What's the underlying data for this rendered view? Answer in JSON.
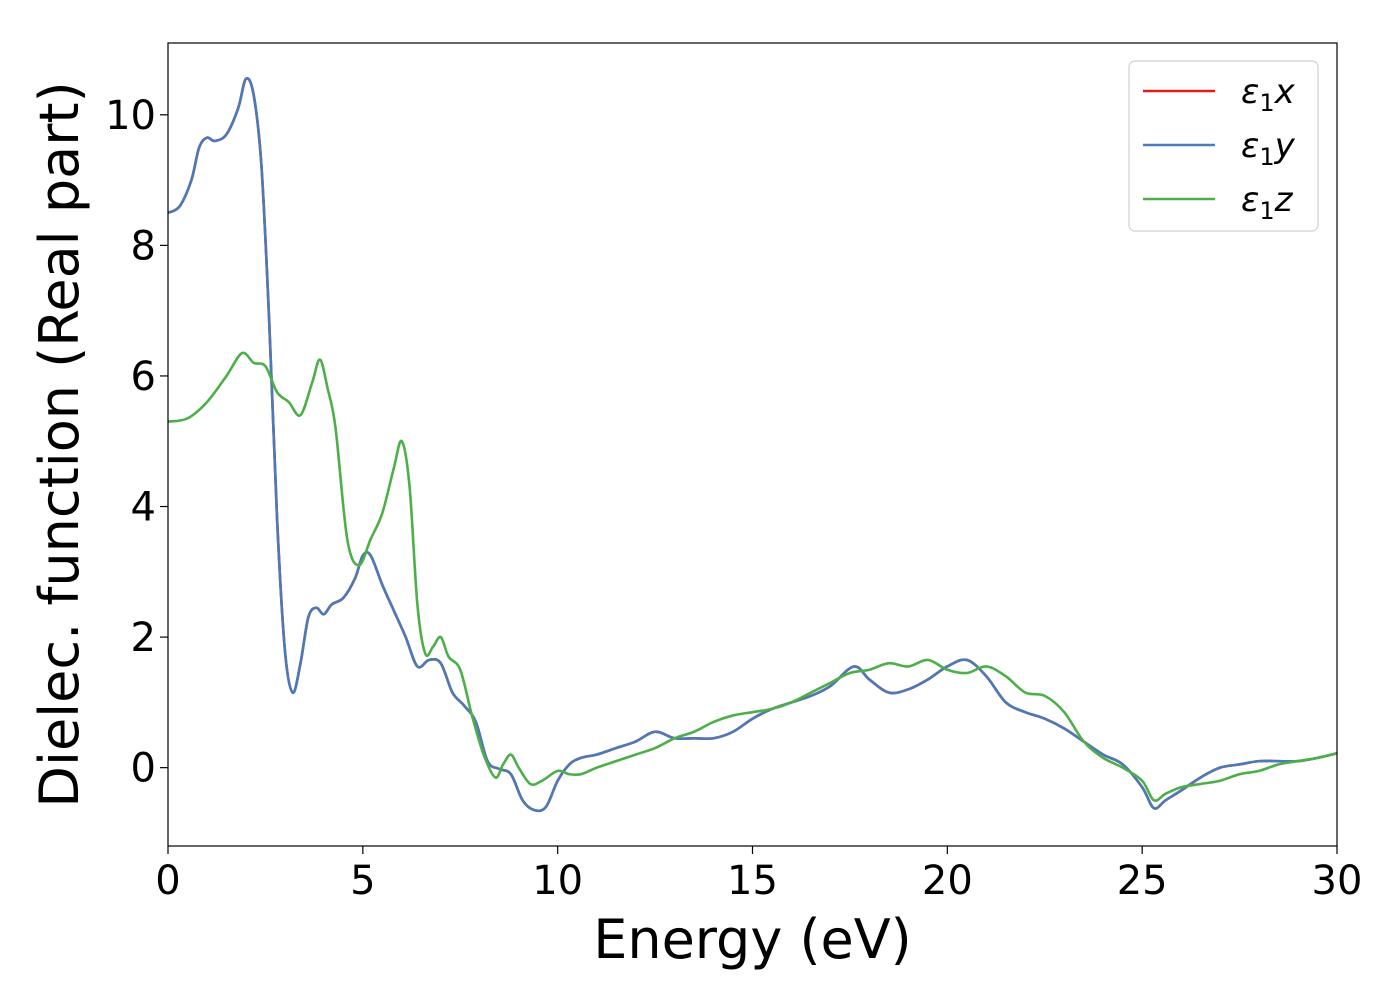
{
  "chart_data": {
    "type": "line",
    "title": "",
    "xlabel": "Energy (eV)",
    "ylabel": "Dielec. function (Real part)",
    "xlim": [
      0,
      30
    ],
    "ylim": [
      -1.2,
      11.1
    ],
    "x_ticks": [
      0,
      5,
      10,
      15,
      20,
      25,
      30
    ],
    "y_ticks": [
      0,
      2,
      4,
      6,
      8,
      10
    ],
    "grid": false,
    "legend_position": "top-right",
    "series": [
      {
        "name": "ε1x",
        "legend_base": "ε",
        "legend_sub": "1",
        "legend_suffix": "x",
        "color": "#e41a1c",
        "x": [
          0,
          0.3,
          0.6,
          0.8,
          1.0,
          1.2,
          1.5,
          1.8,
          2.0,
          2.2,
          2.4,
          2.6,
          2.8,
          3.0,
          3.2,
          3.4,
          3.6,
          3.8,
          4.0,
          4.2,
          4.5,
          4.8,
          5.0,
          5.2,
          5.5,
          5.8,
          6.1,
          6.4,
          6.7,
          7.0,
          7.3,
          7.6,
          7.9,
          8.2,
          8.5,
          8.8,
          9.1,
          9.4,
          9.7,
          10.0,
          10.3,
          10.6,
          11.0,
          11.5,
          12.0,
          12.5,
          13.0,
          13.5,
          14.0,
          14.5,
          15.0,
          15.5,
          16.0,
          16.5,
          17.0,
          17.6,
          18.0,
          18.5,
          19.0,
          19.5,
          20.0,
          20.5,
          21.0,
          21.5,
          22.0,
          22.5,
          23.0,
          23.5,
          24.0,
          24.5,
          25.0,
          25.3,
          25.6,
          26.0,
          26.5,
          27.0,
          27.5,
          28.0,
          28.5,
          29.0,
          29.5,
          30.0
        ],
        "y": [
          8.5,
          8.6,
          9.0,
          9.5,
          9.65,
          9.6,
          9.7,
          10.1,
          10.55,
          10.3,
          9.2,
          6.8,
          3.8,
          1.8,
          1.15,
          1.6,
          2.3,
          2.45,
          2.35,
          2.5,
          2.6,
          2.9,
          3.25,
          3.25,
          2.8,
          2.4,
          2.0,
          1.55,
          1.65,
          1.6,
          1.15,
          0.95,
          0.7,
          0.1,
          -0.02,
          -0.1,
          -0.5,
          -0.65,
          -0.6,
          -0.2,
          0.05,
          0.15,
          0.2,
          0.3,
          0.4,
          0.55,
          0.45,
          0.45,
          0.45,
          0.55,
          0.75,
          0.9,
          1.0,
          1.1,
          1.25,
          1.55,
          1.35,
          1.15,
          1.2,
          1.35,
          1.55,
          1.65,
          1.4,
          1.0,
          0.85,
          0.75,
          0.6,
          0.4,
          0.2,
          0.05,
          -0.3,
          -0.62,
          -0.5,
          -0.35,
          -0.15,
          0.0,
          0.05,
          0.1,
          0.1,
          0.1,
          0.15,
          0.22
        ]
      },
      {
        "name": "ε1y",
        "legend_base": "ε",
        "legend_sub": "1",
        "legend_suffix": "y",
        "color": "#4a7ab8",
        "x": [
          0,
          0.3,
          0.6,
          0.8,
          1.0,
          1.2,
          1.5,
          1.8,
          2.0,
          2.2,
          2.4,
          2.6,
          2.8,
          3.0,
          3.2,
          3.4,
          3.6,
          3.8,
          4.0,
          4.2,
          4.5,
          4.8,
          5.0,
          5.2,
          5.5,
          5.8,
          6.1,
          6.4,
          6.7,
          7.0,
          7.3,
          7.6,
          7.9,
          8.2,
          8.5,
          8.8,
          9.1,
          9.4,
          9.7,
          10.0,
          10.3,
          10.6,
          11.0,
          11.5,
          12.0,
          12.5,
          13.0,
          13.5,
          14.0,
          14.5,
          15.0,
          15.5,
          16.0,
          16.5,
          17.0,
          17.6,
          18.0,
          18.5,
          19.0,
          19.5,
          20.0,
          20.5,
          21.0,
          21.5,
          22.0,
          22.5,
          23.0,
          23.5,
          24.0,
          24.5,
          25.0,
          25.3,
          25.6,
          26.0,
          26.5,
          27.0,
          27.5,
          28.0,
          28.5,
          29.0,
          29.5,
          30.0
        ],
        "y": [
          8.5,
          8.6,
          9.0,
          9.5,
          9.65,
          9.6,
          9.7,
          10.1,
          10.55,
          10.3,
          9.2,
          6.8,
          3.8,
          1.8,
          1.15,
          1.6,
          2.3,
          2.45,
          2.35,
          2.5,
          2.6,
          2.9,
          3.25,
          3.25,
          2.8,
          2.4,
          2.0,
          1.55,
          1.65,
          1.6,
          1.15,
          0.95,
          0.7,
          0.1,
          -0.02,
          -0.1,
          -0.5,
          -0.65,
          -0.6,
          -0.2,
          0.05,
          0.15,
          0.2,
          0.3,
          0.4,
          0.55,
          0.45,
          0.45,
          0.45,
          0.55,
          0.75,
          0.9,
          1.0,
          1.1,
          1.25,
          1.55,
          1.35,
          1.15,
          1.2,
          1.35,
          1.55,
          1.65,
          1.4,
          1.0,
          0.85,
          0.75,
          0.6,
          0.4,
          0.2,
          0.05,
          -0.3,
          -0.62,
          -0.5,
          -0.35,
          -0.15,
          0.0,
          0.05,
          0.1,
          0.1,
          0.1,
          0.15,
          0.22
        ]
      },
      {
        "name": "ε1z",
        "legend_base": "ε",
        "legend_sub": "1",
        "legend_suffix": "z",
        "color": "#4daf4a",
        "x": [
          0,
          0.5,
          1.0,
          1.5,
          1.9,
          2.2,
          2.5,
          2.8,
          3.1,
          3.4,
          3.7,
          3.9,
          4.1,
          4.3,
          4.6,
          4.9,
          5.2,
          5.5,
          5.8,
          6.0,
          6.2,
          6.4,
          6.6,
          6.8,
          7.0,
          7.2,
          7.5,
          7.8,
          8.1,
          8.4,
          8.6,
          8.8,
          9.0,
          9.3,
          9.6,
          10.0,
          10.3,
          10.6,
          11.0,
          11.5,
          12.0,
          12.5,
          13.0,
          13.5,
          14.0,
          14.5,
          15.0,
          15.5,
          16.0,
          16.5,
          17.0,
          17.5,
          18.0,
          18.5,
          19.0,
          19.5,
          20.0,
          20.5,
          21.0,
          21.5,
          22.0,
          22.5,
          23.0,
          23.5,
          24.0,
          24.5,
          25.0,
          25.3,
          25.6,
          26.0,
          26.5,
          27.0,
          27.5,
          28.0,
          28.5,
          29.0,
          29.5,
          30.0
        ],
        "y": [
          5.3,
          5.35,
          5.6,
          6.0,
          6.35,
          6.2,
          6.15,
          5.75,
          5.6,
          5.4,
          5.9,
          6.25,
          5.8,
          5.2,
          3.5,
          3.1,
          3.5,
          3.9,
          4.6,
          5.0,
          4.3,
          2.5,
          1.75,
          1.85,
          2.0,
          1.7,
          1.5,
          0.8,
          0.2,
          -0.15,
          0.05,
          0.2,
          0.0,
          -0.25,
          -0.2,
          -0.05,
          -0.1,
          -0.1,
          0.0,
          0.1,
          0.2,
          0.3,
          0.45,
          0.55,
          0.7,
          0.8,
          0.85,
          0.9,
          1.0,
          1.15,
          1.3,
          1.45,
          1.5,
          1.6,
          1.55,
          1.65,
          1.5,
          1.45,
          1.55,
          1.4,
          1.15,
          1.1,
          0.85,
          0.4,
          0.15,
          0.0,
          -0.2,
          -0.5,
          -0.4,
          -0.3,
          -0.25,
          -0.2,
          -0.1,
          -0.05,
          0.05,
          0.1,
          0.15,
          0.22
        ]
      }
    ]
  }
}
